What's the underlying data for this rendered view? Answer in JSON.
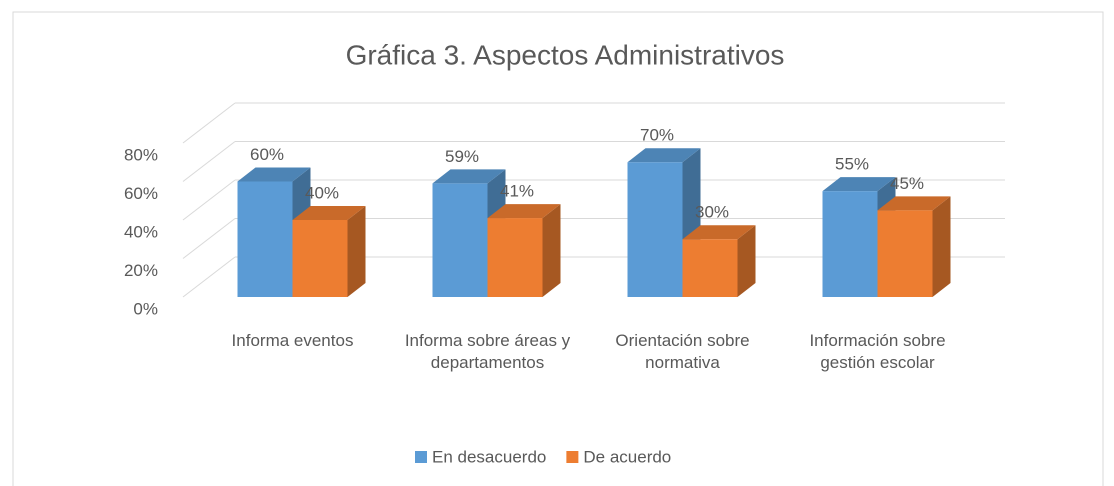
{
  "chart_data": {
    "type": "bar3d",
    "title": "Gráfica 3. Aspectos Administrativos",
    "categories": [
      "Informa eventos",
      "Informa sobre áreas y departamentos",
      "Orientación sobre normativa",
      "Información sobre gestión escolar"
    ],
    "series": [
      {
        "name": "En desacuerdo",
        "color": "#5b9bd5",
        "values": [
          60,
          59,
          70,
          55
        ],
        "value_labels": [
          "60%",
          "59%",
          "70%",
          "55%"
        ]
      },
      {
        "name": "De acuerdo",
        "color": "#ed7d31",
        "values": [
          40,
          41,
          30,
          45
        ],
        "value_labels": [
          "40%",
          "41%",
          "30%",
          "45%"
        ]
      }
    ],
    "ylim": [
      0,
      80
    ],
    "yticks": [
      {
        "value": 0,
        "label": "0%"
      },
      {
        "value": 20,
        "label": "20%"
      },
      {
        "value": 40,
        "label": "40%"
      },
      {
        "value": 60,
        "label": "60%"
      },
      {
        "value": 80,
        "label": "80%"
      }
    ],
    "grid": true,
    "legend": "bottom"
  }
}
